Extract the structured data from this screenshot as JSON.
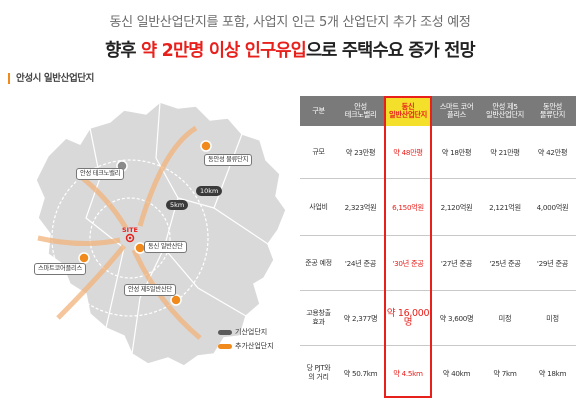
{
  "headline": {
    "line1": "동신 일반산업단지를 포함, 사업지 인근 5개 산업단지 추가 조성 예정",
    "line2_pre": "향후 ",
    "line2_highlight": "약 2만명 이상 인구유입",
    "line2_post": "으로 주택수요 증가 전망"
  },
  "section_title": "안성시 일반산업단지",
  "map": {
    "pins": [
      {
        "label": "동안성 물류단지"
      },
      {
        "label": "안성 테크노밸리"
      },
      {
        "label": "스마트코어플리스"
      },
      {
        "label": "동신 일반산단"
      },
      {
        "label": "안성 제5일반산단"
      }
    ],
    "rings": [
      "5km",
      "10km"
    ],
    "site_label": "SITE",
    "legend": [
      {
        "label": "기산업단지",
        "color": "#5a5a5a"
      },
      {
        "label": "추가산업단지",
        "color": "#f08a1c"
      }
    ]
  },
  "table": {
    "headers": [
      "구분",
      "안성\n테크노밸리",
      "동신\n일반산업단지",
      "스마트 코어\n플리스",
      "안성 제5\n일반산업단지",
      "동안성\n물류단지"
    ],
    "rows": [
      {
        "label": "규모",
        "cells": [
          "약 23만평",
          "약 48만평",
          "약 18만평",
          "약 21만평",
          "약 42만평"
        ]
      },
      {
        "label": "사업비",
        "cells": [
          "2,323억원",
          "6,150억원",
          "2,120억원",
          "2,121억원",
          "4,000억원"
        ]
      },
      {
        "label": "준공 예정",
        "cells": [
          "'24년 준공",
          "'30년 준공",
          "'27년 준공",
          "'25년 준공",
          "'29년 준공"
        ]
      },
      {
        "label": "고용창출\n효과",
        "cells": [
          "약 2,377명",
          "약 16,000명",
          "약 3,600명",
          "미정",
          "미정"
        ]
      },
      {
        "label": "당 PJT와\n의 거리",
        "cells": [
          "약 50.7km",
          "약 4.5km",
          "약 40km",
          "약 7km",
          "약 18km"
        ]
      }
    ]
  },
  "colors": {
    "accent_red": "#e8201c",
    "accent_orange": "#f08a1c",
    "header_gray": "#7a7a7a",
    "highlight_yellow": "#f4df2a",
    "map_land": "#d9d9d9"
  }
}
